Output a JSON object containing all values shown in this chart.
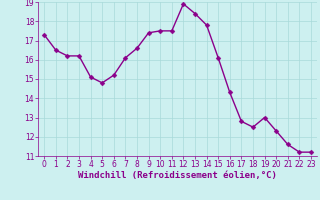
{
  "x": [
    0,
    1,
    2,
    3,
    4,
    5,
    6,
    7,
    8,
    9,
    10,
    11,
    12,
    13,
    14,
    15,
    16,
    17,
    18,
    19,
    20,
    21,
    22,
    23
  ],
  "y": [
    17.3,
    16.5,
    16.2,
    16.2,
    15.1,
    14.8,
    15.2,
    16.1,
    16.6,
    17.4,
    17.5,
    17.5,
    18.9,
    18.4,
    17.8,
    16.1,
    14.3,
    12.8,
    12.5,
    13.0,
    12.3,
    11.6,
    11.2,
    11.2
  ],
  "line_color": "#8B008B",
  "marker_color": "#8B008B",
  "bg_color": "#cdf0f0",
  "grid_color": "#a8dada",
  "xlabel": "Windchill (Refroidissement éolien,°C)",
  "xlabel_color": "#8B008B",
  "ylim": [
    11,
    19
  ],
  "xlim_min": -0.5,
  "xlim_max": 23.5,
  "yticks": [
    11,
    12,
    13,
    14,
    15,
    16,
    17,
    18,
    19
  ],
  "xticks": [
    0,
    1,
    2,
    3,
    4,
    5,
    6,
    7,
    8,
    9,
    10,
    11,
    12,
    13,
    14,
    15,
    16,
    17,
    18,
    19,
    20,
    21,
    22,
    23
  ],
  "tick_color": "#8B008B",
  "marker_size": 2.5,
  "line_width": 1.0,
  "tick_fontsize": 5.5,
  "xlabel_fontsize": 6.5
}
